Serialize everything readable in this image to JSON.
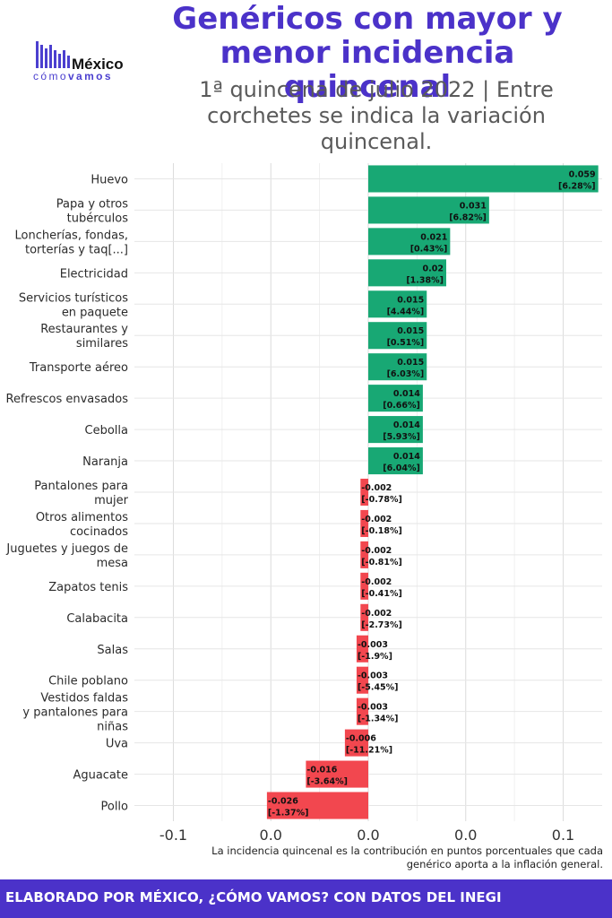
{
  "header": {
    "title": "Genéricos con mayor y menor incidencia quincenal",
    "subtitle": "1ª quincena de julio 2022 | Entre corchetes se indica la variación quincenal."
  },
  "logo": {
    "brand": "México",
    "sub_light": "cómo",
    "sub_bold": "vamos",
    "color": "#4b3fcf"
  },
  "note": "La incidencia quincenal es la contribución en puntos porcentuales que cada genérico aporta a la inflación general.",
  "footer": {
    "text": "ELABORADO POR MÉXICO, ¿CÓMO VAMOS? CON DATOS DEL INEGI",
    "color": "#4b32c9"
  },
  "chart_data": {
    "type": "bar",
    "orientation": "horizontal",
    "categories": [
      [
        "Huevo"
      ],
      [
        "Papa y otros",
        "tubérculos"
      ],
      [
        "Loncherías, fondas,",
        "torterías y taq[...]"
      ],
      [
        "Electricidad"
      ],
      [
        "Servicios turísticos",
        "en paquete"
      ],
      [
        "Restaurantes y",
        "similares"
      ],
      [
        "Transporte aéreo"
      ],
      [
        "Refrescos envasados"
      ],
      [
        "Cebolla"
      ],
      [
        "Naranja"
      ],
      [
        "Pantalones para",
        "mujer"
      ],
      [
        "Otros alimentos",
        "cocinados"
      ],
      [
        "Juguetes y juegos de",
        "mesa"
      ],
      [
        "Zapatos tenis"
      ],
      [
        "Calabacita"
      ],
      [
        "Salas"
      ],
      [
        "Chile poblano"
      ],
      [
        "Vestidos faldas",
        "y pantalones para",
        "niñas"
      ],
      [
        "Uva"
      ],
      [
        "Aguacate"
      ],
      [
        "Pollo"
      ]
    ],
    "values": [
      0.059,
      0.031,
      0.021,
      0.02,
      0.015,
      0.015,
      0.015,
      0.014,
      0.014,
      0.014,
      -0.002,
      -0.002,
      -0.002,
      -0.002,
      -0.002,
      -0.003,
      -0.003,
      -0.003,
      -0.006,
      -0.016,
      -0.026
    ],
    "value_labels": [
      "0.059",
      "0.031",
      "0.021",
      "0.02",
      "0.015",
      "0.015",
      "0.015",
      "0.014",
      "0.014",
      "0.014",
      "-0.002",
      "-0.002",
      "-0.002",
      "-0.002",
      "-0.002",
      "-0.003",
      "-0.003",
      "-0.003",
      "-0.006",
      "-0.016",
      "-0.026"
    ],
    "variation_labels": [
      "[6.28%]",
      "[6.82%]",
      "[0.43%]",
      "[1.38%]",
      "[4.44%]",
      "[0.51%]",
      "[6.03%]",
      "[0.66%]",
      "[5.93%]",
      "[6.04%]",
      "[-0.78%]",
      "[-0.18%]",
      "[-0.81%]",
      "[-0.41%]",
      "[-2.73%]",
      "[-1.9%]",
      "[-5.45%]",
      "[-1.34%]",
      "[-11.21%]",
      "[-3.64%]",
      "[-1.37%]"
    ],
    "xlim": [
      -0.06,
      0.06
    ],
    "ticks": [
      -0.05,
      -0.025,
      0,
      0.025,
      0.05
    ],
    "tick_labels": [
      "-0.1",
      "0.0",
      "0.0",
      "0.0",
      "0.1"
    ],
    "grid": true,
    "colors": {
      "positive": "#18a874",
      "negative": "#f2474f"
    }
  }
}
